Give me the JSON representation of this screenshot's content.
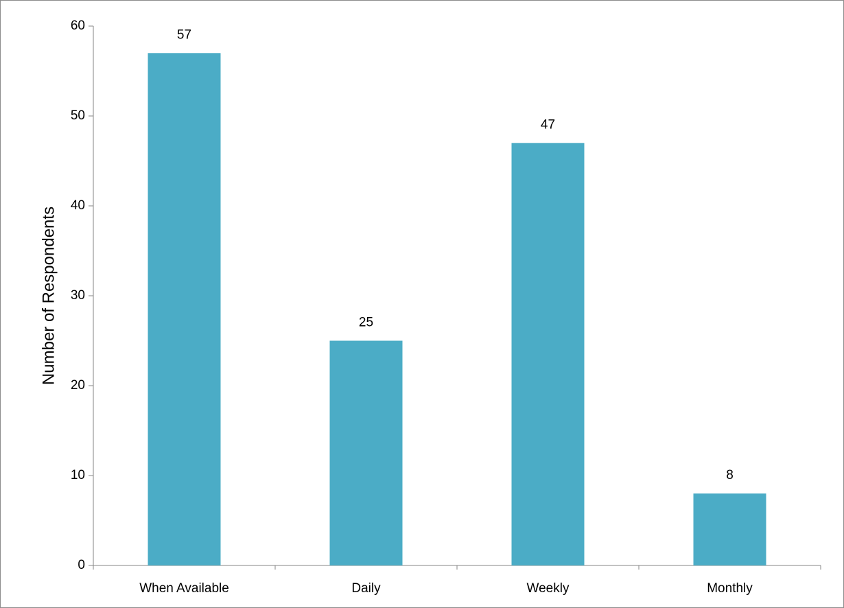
{
  "chart_data": {
    "type": "bar",
    "categories": [
      "When Available",
      "Daily",
      "Weekly",
      "Monthly"
    ],
    "values": [
      57,
      25,
      47,
      8
    ],
    "data_labels": [
      "57",
      "25",
      "47",
      "8"
    ],
    "title": "",
    "xlabel": "",
    "ylabel": "Number of Respondents",
    "ylim": [
      0,
      60
    ],
    "yticks": [
      0,
      10,
      20,
      30,
      40,
      50,
      60
    ],
    "ytick_labels": [
      "0",
      "10",
      "20",
      "30",
      "40",
      "50",
      "60"
    ],
    "grid": false,
    "legend": "none",
    "bar_color": "#4BACC6",
    "axis_color": "#868686"
  }
}
